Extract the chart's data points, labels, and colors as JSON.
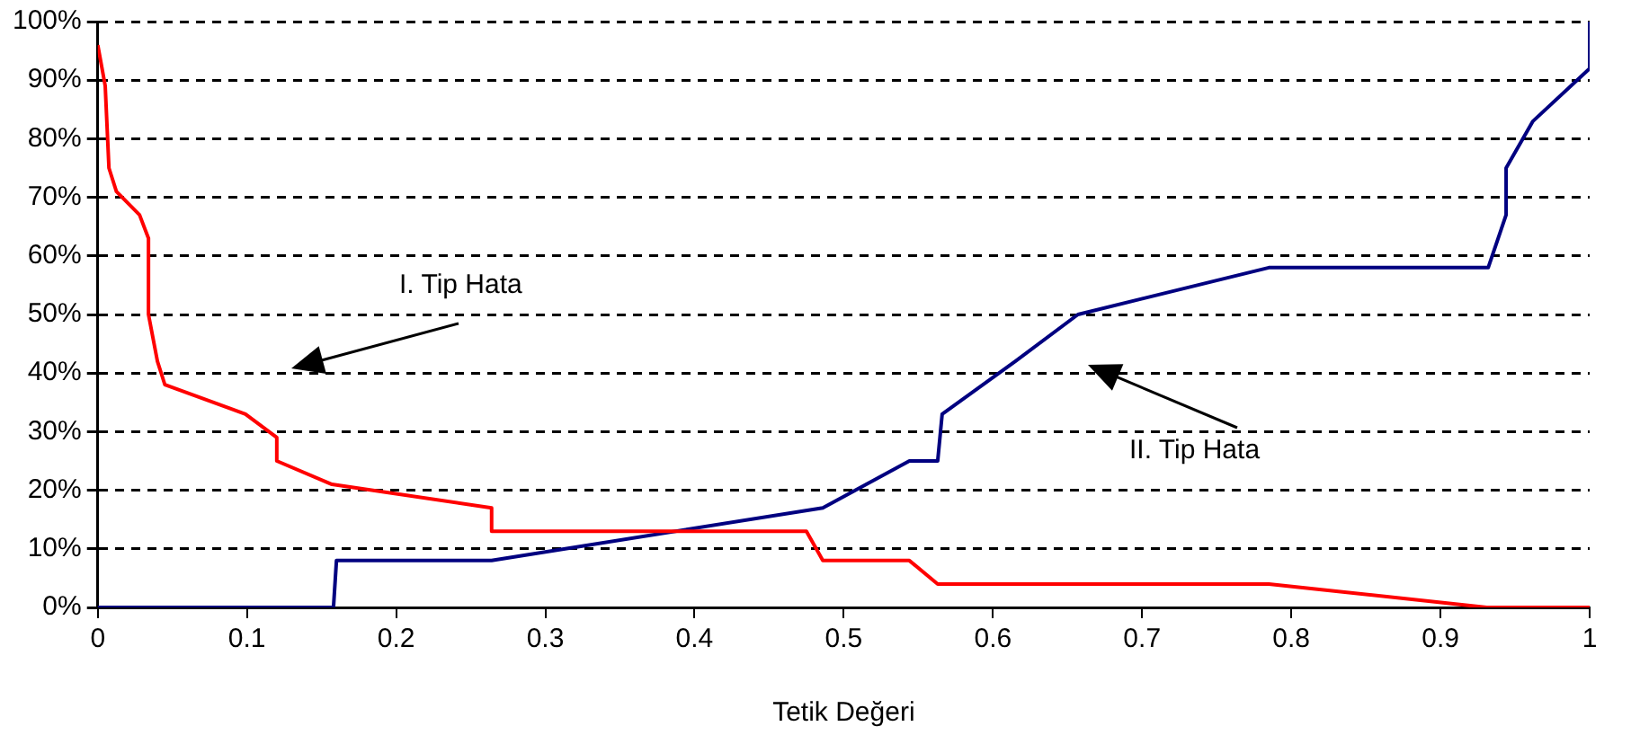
{
  "chart_data": {
    "type": "line",
    "xlabel": "Tetik Değeri",
    "series": [
      {
        "color": "#ff0000",
        "x": [
          0,
          0.005,
          0.0075,
          0.0125,
          0.028,
          0.034,
          0.034,
          0.04,
          0.045,
          0.099,
          0.12,
          0.12,
          0.157,
          0.264,
          0.264,
          0.475,
          0.486,
          0.544,
          0.563,
          0.785,
          0.931,
          1
        ],
        "values": [
          96,
          89,
          75,
          71,
          67,
          63,
          50,
          42,
          38,
          33,
          29,
          25,
          21,
          17,
          13,
          13,
          8,
          8,
          4,
          4,
          0,
          0
        ]
      },
      {
        "color": "#000080",
        "x": [
          0,
          0.158,
          0.16,
          0.264,
          0.486,
          0.544,
          0.563,
          0.566,
          0.615,
          0.657,
          0.785,
          0.932,
          0.944,
          0.944,
          0.962,
          1,
          1
        ],
        "values": [
          0,
          0,
          8,
          8,
          17,
          25,
          25,
          33,
          42,
          50,
          58,
          58,
          67,
          75,
          83,
          92,
          100
        ]
      }
    ],
    "xlim": [
      0,
      1
    ],
    "xticks": [
      0,
      0.1,
      0.2,
      0.3,
      0.4,
      0.5,
      0.6,
      0.7,
      0.8,
      0.9,
      1
    ],
    "ylim": [
      0,
      100
    ],
    "yticks": [
      {
        "value": 0,
        "label": "0%"
      },
      {
        "value": 10,
        "label": "10%"
      },
      {
        "value": 20,
        "label": "20%"
      },
      {
        "value": 30,
        "label": "30%"
      },
      {
        "value": 40,
        "label": "40%"
      },
      {
        "value": 50,
        "label": "50%"
      },
      {
        "value": 60,
        "label": "60%"
      },
      {
        "value": 70,
        "label": "70%"
      },
      {
        "value": 80,
        "label": "80%"
      },
      {
        "value": 90,
        "label": "90%"
      },
      {
        "value": 100,
        "label": "100%"
      }
    ],
    "grid": "y",
    "line_style": "solid",
    "marker": "none",
    "legend": false,
    "annotations": [
      "I. Tip Hata",
      "II. Tip Hata"
    ]
  }
}
